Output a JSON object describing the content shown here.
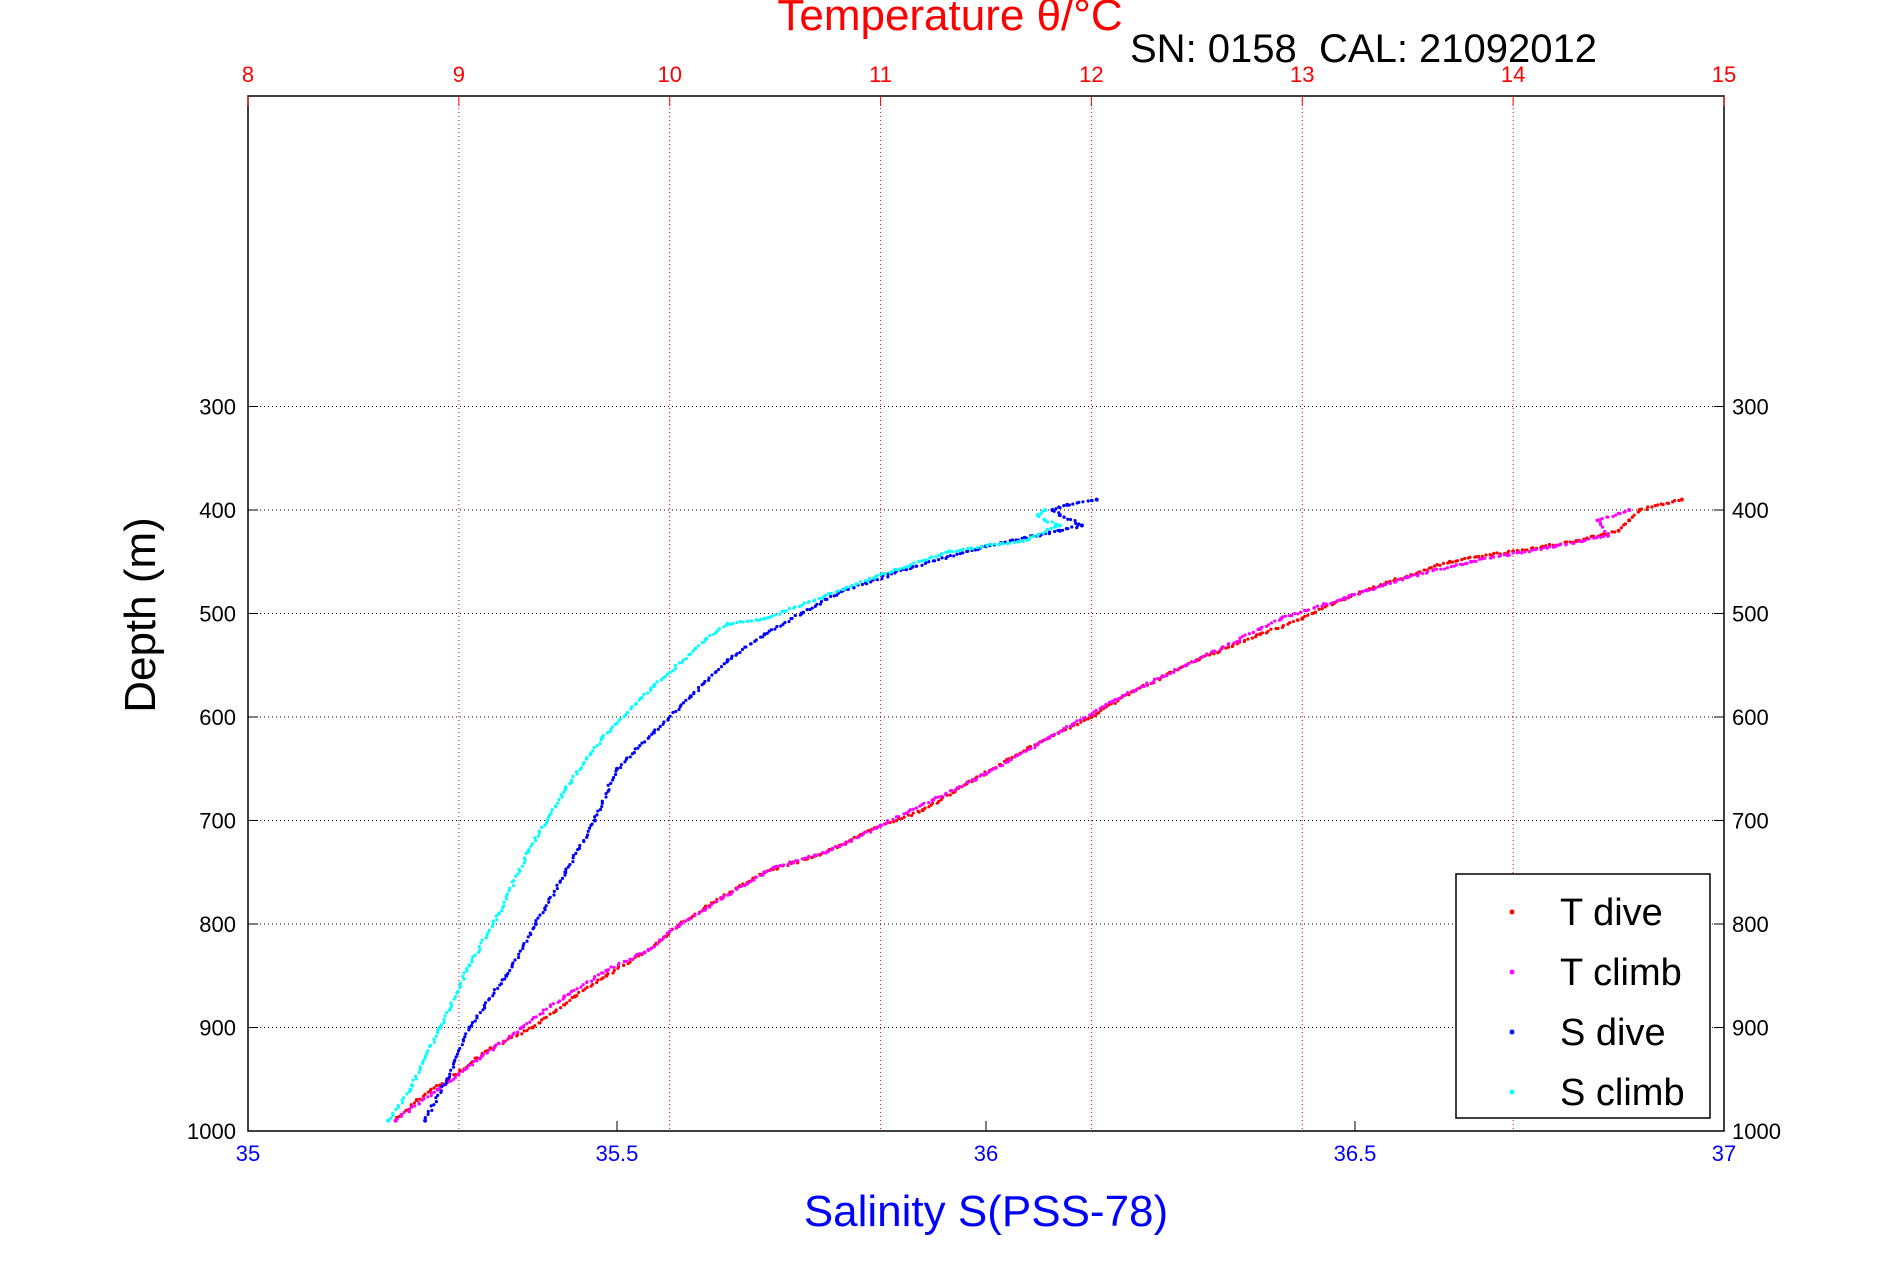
{
  "chart_data": {
    "type": "scatter",
    "title": "Temperature θ/°C",
    "annotation": "SN: 0158  CAL: 21092012",
    "ylabel": "Depth (m)",
    "xlabel": "Salinity S(PSS-78)",
    "x_bottom": {
      "label": "Salinity S(PSS-78)",
      "lim": [
        35,
        37
      ],
      "ticks": [
        "35",
        "35.5",
        "36",
        "36.5",
        "37"
      ],
      "color": "#0000ff"
    },
    "x_top": {
      "label": "Temperature θ/°C",
      "lim": [
        8,
        15
      ],
      "ticks": [
        "8",
        "9",
        "10",
        "11",
        "12",
        "13",
        "14",
        "15"
      ],
      "color": "#ff0000"
    },
    "y": {
      "lim": [
        0,
        1000
      ],
      "reversed": true,
      "ticks": [
        "300",
        "400",
        "500",
        "600",
        "700",
        "800",
        "900",
        "1000"
      ]
    },
    "grid": true,
    "legend_position": "bottom-right",
    "legend": [
      "T dive",
      "T climb",
      "S dive",
      "S climb"
    ],
    "series": [
      {
        "name": "T dive",
        "axis": "temperature",
        "color": "#ff0000",
        "points": [
          [
            14.8,
            390
          ],
          [
            14.6,
            400
          ],
          [
            14.55,
            410
          ],
          [
            14.5,
            420
          ],
          [
            14.3,
            430
          ],
          [
            14.0,
            440
          ],
          [
            13.7,
            450
          ],
          [
            13.4,
            470
          ],
          [
            13.15,
            490
          ],
          [
            13.0,
            505
          ],
          [
            12.8,
            520
          ],
          [
            12.5,
            545
          ],
          [
            12.2,
            575
          ],
          [
            12.0,
            600
          ],
          [
            11.7,
            630
          ],
          [
            11.45,
            660
          ],
          [
            11.2,
            690
          ],
          [
            11.0,
            705
          ],
          [
            10.75,
            730
          ],
          [
            10.45,
            750
          ],
          [
            10.2,
            780
          ],
          [
            10.05,
            800
          ],
          [
            9.9,
            825
          ],
          [
            9.7,
            850
          ],
          [
            9.55,
            870
          ],
          [
            9.35,
            900
          ],
          [
            9.15,
            920
          ],
          [
            8.95,
            950
          ],
          [
            8.8,
            970
          ],
          [
            8.7,
            990
          ]
        ]
      },
      {
        "name": "T climb",
        "axis": "temperature",
        "color": "#ff00ff",
        "points": [
          [
            14.55,
            400
          ],
          [
            14.4,
            410
          ],
          [
            14.45,
            425
          ],
          [
            14.2,
            435
          ],
          [
            13.8,
            450
          ],
          [
            13.5,
            465
          ],
          [
            13.2,
            485
          ],
          [
            12.9,
            505
          ],
          [
            12.8,
            515
          ],
          [
            12.45,
            550
          ],
          [
            12.1,
            585
          ],
          [
            11.8,
            620
          ],
          [
            11.5,
            655
          ],
          [
            11.25,
            680
          ],
          [
            11.0,
            705
          ],
          [
            10.75,
            730
          ],
          [
            10.5,
            745
          ],
          [
            10.25,
            775
          ],
          [
            10.05,
            800
          ],
          [
            9.9,
            825
          ],
          [
            9.7,
            845
          ],
          [
            9.5,
            870
          ],
          [
            9.3,
            900
          ],
          [
            9.1,
            930
          ],
          [
            8.9,
            960
          ],
          [
            8.7,
            990
          ]
        ]
      },
      {
        "name": "S dive",
        "axis": "salinity",
        "color": "#0000ff",
        "points": [
          [
            36.15,
            390
          ],
          [
            36.11,
            395
          ],
          [
            36.09,
            400
          ],
          [
            36.1,
            405
          ],
          [
            36.13,
            415
          ],
          [
            36.1,
            420
          ],
          [
            36.0,
            435
          ],
          [
            35.9,
            455
          ],
          [
            35.8,
            480
          ],
          [
            35.75,
            500
          ],
          [
            35.7,
            520
          ],
          [
            35.65,
            545
          ],
          [
            35.6,
            580
          ],
          [
            35.55,
            615
          ],
          [
            35.5,
            650
          ],
          [
            35.47,
            700
          ],
          [
            35.43,
            750
          ],
          [
            35.39,
            800
          ],
          [
            35.35,
            850
          ],
          [
            35.3,
            900
          ],
          [
            35.27,
            950
          ],
          [
            35.24,
            990
          ]
        ]
      },
      {
        "name": "S climb",
        "axis": "salinity",
        "color": "#00ffff",
        "points": [
          [
            36.08,
            400
          ],
          [
            36.07,
            405
          ],
          [
            36.08,
            410
          ],
          [
            36.1,
            415
          ],
          [
            36.05,
            430
          ],
          [
            35.95,
            440
          ],
          [
            35.85,
            465
          ],
          [
            35.7,
            505
          ],
          [
            35.65,
            510
          ],
          [
            35.62,
            525
          ],
          [
            35.55,
            570
          ],
          [
            35.48,
            620
          ],
          [
            35.43,
            670
          ],
          [
            35.38,
            730
          ],
          [
            35.34,
            790
          ],
          [
            35.3,
            840
          ],
          [
            35.26,
            900
          ],
          [
            35.22,
            960
          ],
          [
            35.19,
            990
          ]
        ]
      }
    ]
  }
}
